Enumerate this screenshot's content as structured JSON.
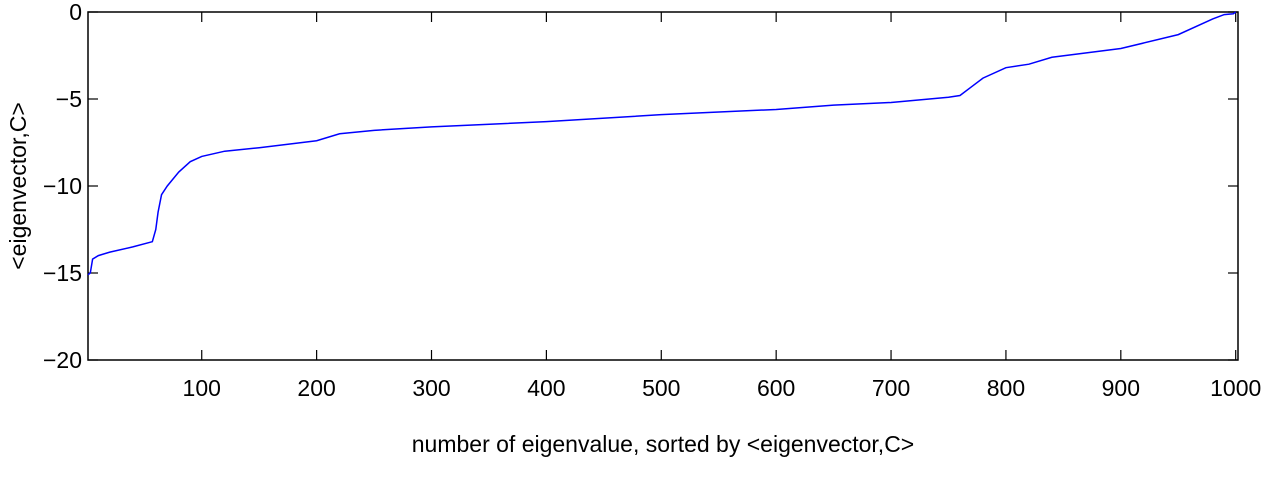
{
  "chart_data": {
    "type": "line",
    "x_label": "number of eigenvalue, sorted by <eigenvector,C>",
    "y_label": "<eigenvector,C>",
    "xlim": [
      1,
      1002
    ],
    "ylim": [
      -20,
      0
    ],
    "xticks": [
      100,
      200,
      300,
      400,
      500,
      600,
      700,
      800,
      900,
      1000
    ],
    "yticks": [
      {
        "value": -20,
        "label": "−20"
      },
      {
        "value": -15,
        "label": "−15"
      },
      {
        "value": -10,
        "label": "−10"
      },
      {
        "value": -5,
        "label": "−5"
      },
      0
    ],
    "series": [
      {
        "color": "#0000ff",
        "x": [
          1,
          3,
          5,
          10,
          20,
          40,
          57,
          60,
          62,
          65,
          70,
          80,
          90,
          100,
          120,
          150,
          200,
          220,
          250,
          300,
          400,
          500,
          600,
          650,
          700,
          750,
          760,
          770,
          780,
          800,
          820,
          840,
          900,
          950,
          980,
          990,
          998,
          1000
        ],
        "values": [
          -15.1,
          -15,
          -14.2,
          -14,
          -13.8,
          -13.5,
          -13.2,
          -12.5,
          -11.5,
          -10.5,
          -10,
          -9.2,
          -8.6,
          -8.3,
          -8.0,
          -7.8,
          -7.4,
          -7.0,
          -6.8,
          -6.6,
          -6.3,
          -5.9,
          -5.6,
          -5.35,
          -5.2,
          -4.9,
          -4.8,
          -4.3,
          -3.8,
          -3.2,
          -3.0,
          -2.6,
          -2.1,
          -1.3,
          -0.4,
          -0.15,
          -0.1,
          0
        ]
      }
    ]
  }
}
